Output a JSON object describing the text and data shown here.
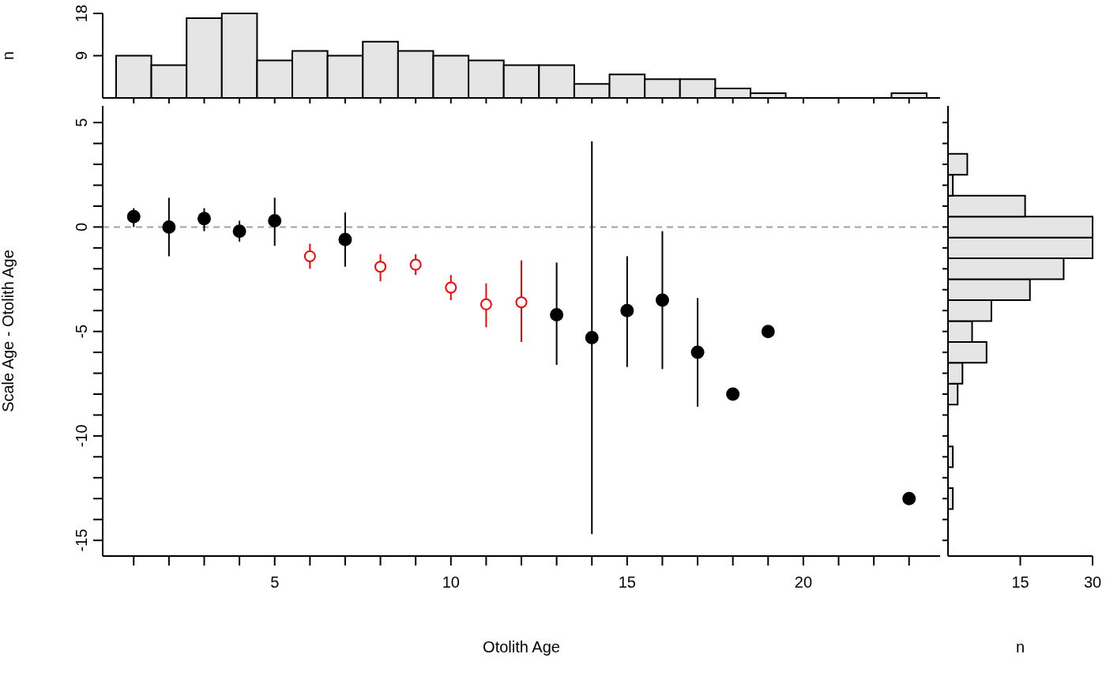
{
  "chart_data": [
    {
      "type": "histogram",
      "ylabel": "n",
      "xlim": [
        0.12,
        23.88
      ],
      "xticks": [
        {
          "value": 1,
          "label": null
        },
        {
          "value": 2,
          "label": null
        },
        {
          "value": 3,
          "label": null
        },
        {
          "value": 4,
          "label": null
        },
        {
          "value": 5,
          "label": null
        },
        {
          "value": 6,
          "label": null
        },
        {
          "value": 7,
          "label": null
        },
        {
          "value": 8,
          "label": null
        },
        {
          "value": 9,
          "label": null
        },
        {
          "value": 10,
          "label": null
        },
        {
          "value": 11,
          "label": null
        },
        {
          "value": 12,
          "label": null
        },
        {
          "value": 13,
          "label": null
        },
        {
          "value": 14,
          "label": null
        },
        {
          "value": 15,
          "label": null
        },
        {
          "value": 16,
          "label": null
        },
        {
          "value": 17,
          "label": null
        },
        {
          "value": 18,
          "label": null
        },
        {
          "value": 19,
          "label": null
        },
        {
          "value": 20,
          "label": null
        },
        {
          "value": 21,
          "label": null
        },
        {
          "value": 22,
          "label": null
        },
        {
          "value": 23,
          "label": null
        }
      ],
      "ylim": [
        0,
        18
      ],
      "yticks": [
        9,
        18
      ],
      "tick_labels": "y",
      "color": "#e5e5e5",
      "bins": [
        0.5,
        1.5,
        2.5,
        3.5,
        4.5,
        5.5,
        6.5,
        7.5,
        8.5,
        9.5,
        10.5,
        11.5,
        12.5,
        13.5,
        14.5,
        15.5,
        16.5,
        17.5,
        18.5,
        19.5,
        20.5,
        21.5,
        22.5,
        23.5
      ],
      "values": [
        9,
        7,
        17,
        18,
        8,
        10,
        9,
        12,
        10,
        9,
        8,
        7,
        7,
        3,
        5,
        4,
        4,
        2,
        1,
        0,
        0,
        0,
        1
      ]
    },
    {
      "type": "scatter",
      "xlabel": "Otolith Age",
      "ylabel": "Scale Age - Otolith Age",
      "marker": "circle",
      "xlim": [
        0.12,
        23.88
      ],
      "xticks": [
        {
          "value": 1,
          "label": null
        },
        {
          "value": 2,
          "label": null
        },
        {
          "value": 3,
          "label": null
        },
        {
          "value": 4,
          "label": null
        },
        5,
        {
          "value": 6,
          "label": null
        },
        {
          "value": 7,
          "label": null
        },
        {
          "value": 8,
          "label": null
        },
        {
          "value": 9,
          "label": null
        },
        10,
        {
          "value": 11,
          "label": null
        },
        {
          "value": 12,
          "label": null
        },
        {
          "value": 13,
          "label": null
        },
        {
          "value": 14,
          "label": null
        },
        15,
        {
          "value": 16,
          "label": null
        },
        {
          "value": 17,
          "label": null
        },
        {
          "value": 18,
          "label": null
        },
        {
          "value": 19,
          "label": null
        },
        20,
        {
          "value": 21,
          "label": null
        },
        {
          "value": 22,
          "label": null
        },
        {
          "value": 23,
          "label": null
        }
      ],
      "ylim": [
        -15.75,
        5.8
      ],
      "yticks": [
        -15,
        {
          "value": -14,
          "label": null
        },
        {
          "value": -13,
          "label": null
        },
        {
          "value": -12,
          "label": null
        },
        {
          "value": -11,
          "label": null
        },
        -10,
        {
          "value": -9,
          "label": null
        },
        {
          "value": -8,
          "label": null
        },
        {
          "value": -7,
          "label": null
        },
        {
          "value": -6,
          "label": null
        },
        -5,
        {
          "value": -4,
          "label": null
        },
        {
          "value": -3,
          "label": null
        },
        {
          "value": -2,
          "label": null
        },
        {
          "value": -1,
          "label": null
        },
        0,
        {
          "value": 1,
          "label": null
        },
        {
          "value": 2,
          "label": null
        },
        {
          "value": 3,
          "label": null
        },
        {
          "value": 4,
          "label": null
        },
        5
      ],
      "ref_lines": [
        {
          "axis": "y",
          "value": 0,
          "color": "#a0a0a0",
          "line_style": "dashed"
        }
      ],
      "series": [
        {
          "color": "#000000",
          "x": [
            1,
            2,
            3,
            4,
            5,
            7,
            13,
            14,
            15,
            16,
            17,
            18,
            19,
            23
          ],
          "values": [
            0.5,
            0,
            0.4,
            -0.2,
            0.3,
            -0.6,
            -4.2,
            -5.3,
            -4.0,
            -3.5,
            -6.0,
            -8.0,
            -5.0,
            -13.0
          ],
          "errors": [
            [
              0,
              0.9
            ],
            [
              -1.4,
              1.4
            ],
            [
              -0.2,
              0.9
            ],
            [
              -0.7,
              0.3
            ],
            [
              -0.9,
              1.4
            ],
            [
              -1.9,
              0.7
            ],
            [
              -6.6,
              -1.7
            ],
            [
              -14.7,
              4.1
            ],
            [
              -6.7,
              -1.4
            ],
            [
              -6.8,
              -0.2
            ],
            [
              -8.6,
              -3.4
            ],
            null,
            null,
            null
          ]
        },
        {
          "color": "#ff0000",
          "x": [
            6,
            8,
            9,
            10,
            11,
            12
          ],
          "values": [
            -1.4,
            -1.9,
            -1.8,
            -2.9,
            -3.7,
            -3.6
          ],
          "errors": [
            [
              -2.0,
              -0.8
            ],
            [
              -2.6,
              -1.3
            ],
            [
              -2.3,
              -1.3
            ],
            [
              -3.5,
              -2.3
            ],
            [
              -4.8,
              -2.7
            ],
            [
              -5.5,
              -1.6
            ]
          ]
        }
      ]
    },
    {
      "type": "histogram",
      "orientation": "horizontal",
      "xlabel": "n",
      "xlim": [
        0,
        30
      ],
      "xticks": [
        15,
        30
      ],
      "ylim": [
        -15.75,
        5.8
      ],
      "yticks": [
        {
          "value": -15,
          "label": null
        },
        {
          "value": -14,
          "label": null
        },
        {
          "value": -13,
          "label": null
        },
        {
          "value": -12,
          "label": null
        },
        {
          "value": -11,
          "label": null
        },
        {
          "value": -10,
          "label": null
        },
        {
          "value": -9,
          "label": null
        },
        {
          "value": -8,
          "label": null
        },
        {
          "value": -7,
          "label": null
        },
        {
          "value": -6,
          "label": null
        },
        {
          "value": -5,
          "label": null
        },
        {
          "value": -4,
          "label": null
        },
        {
          "value": -3,
          "label": null
        },
        {
          "value": -2,
          "label": null
        },
        {
          "value": -1,
          "label": null
        },
        {
          "value": 0,
          "label": null
        },
        {
          "value": 1,
          "label": null
        },
        {
          "value": 2,
          "label": null
        },
        {
          "value": 3,
          "label": null
        },
        {
          "value": 4,
          "label": null
        },
        {
          "value": 5,
          "label": null
        }
      ],
      "tick_labels": "x",
      "color": "#e5e5e5",
      "bins": [
        -13.5,
        -12.5,
        -11.5,
        -10.5,
        -9.5,
        -8.5,
        -7.5,
        -6.5,
        -5.5,
        -4.5,
        -3.5,
        -2.5,
        -1.5,
        -0.5,
        0.5,
        1.5,
        2.5,
        3.5
      ],
      "values": [
        1,
        0,
        1,
        0,
        0,
        2,
        3,
        8,
        5,
        9,
        17,
        24,
        30,
        30,
        16,
        1,
        4
      ]
    }
  ]
}
